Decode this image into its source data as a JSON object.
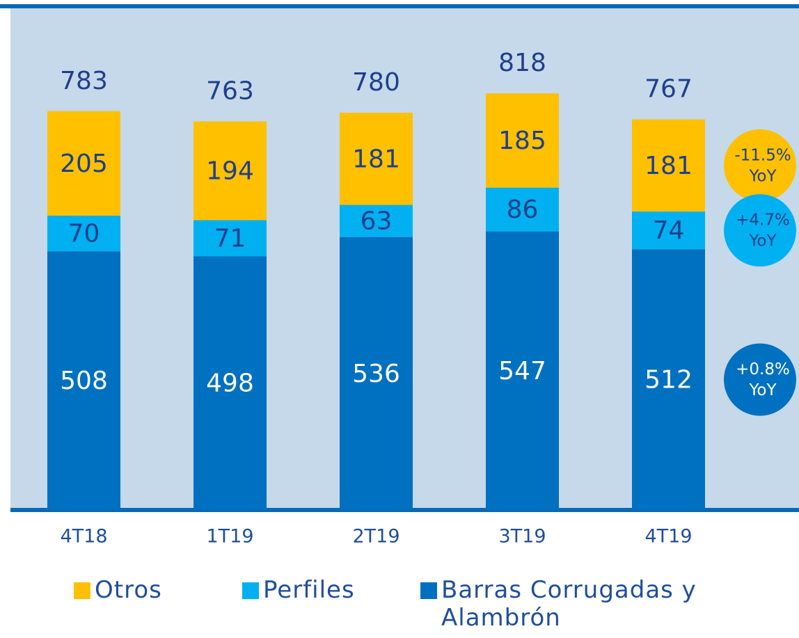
{
  "chart_data": {
    "type": "stacked-bar",
    "categories": [
      "4T18",
      "1T19",
      "2T19",
      "3T19",
      "4T19"
    ],
    "totals": [
      783,
      763,
      780,
      818,
      767
    ],
    "series": [
      {
        "name": "Otros",
        "color": "#ffc000",
        "values": [
          205,
          194,
          181,
          185,
          181
        ],
        "annotation": [
          "-11.5%",
          "YoY"
        ]
      },
      {
        "name": "Perfiles",
        "color": "#00b0f0",
        "values": [
          70,
          71,
          63,
          86,
          74
        ],
        "annotation": [
          "+4.7%",
          "YoY"
        ]
      },
      {
        "name": "Barras Corrugadas y Alambrón",
        "color": "#0070c0",
        "values": [
          508,
          498,
          536,
          547,
          512
        ],
        "annotation": [
          "+0.8%",
          "YoY"
        ]
      }
    ],
    "ylim": [
      0,
      1000
    ],
    "legend": "bottom"
  }
}
